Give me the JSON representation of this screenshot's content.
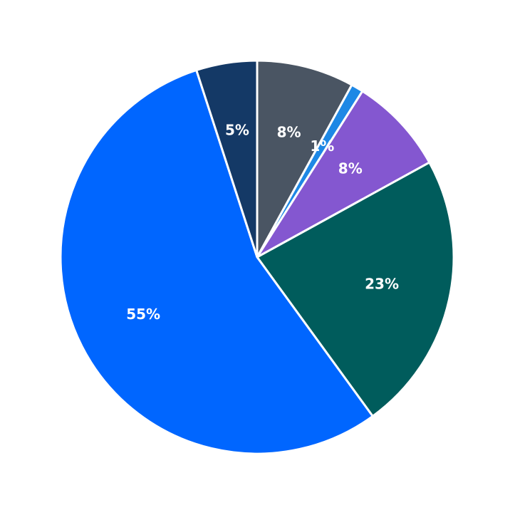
{
  "chart_data": {
    "type": "pie",
    "values": [
      8,
      1,
      8,
      23,
      55,
      5
    ],
    "value_labels": [
      "8%",
      "1%",
      "8%",
      "23%",
      "55%",
      "5%"
    ],
    "colors": [
      "#4a5563",
      "#1e88e5",
      "#8457d0",
      "#005c5c",
      "#0066ff",
      "#143966"
    ],
    "start_angle": 90,
    "direction": "clockwise"
  }
}
